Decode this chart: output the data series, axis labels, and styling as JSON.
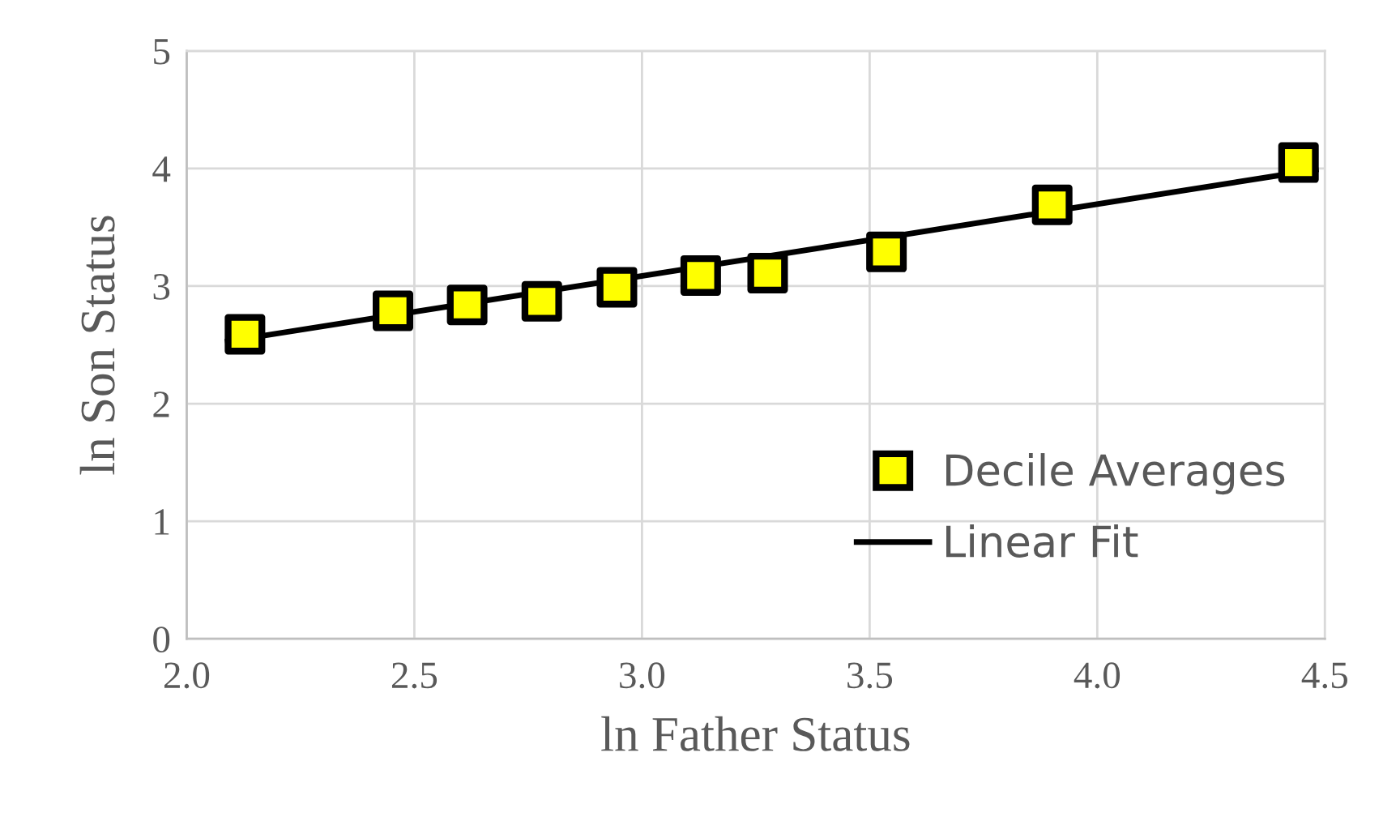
{
  "chart_data": {
    "type": "scatter",
    "xlabel": "ln Father Status",
    "ylabel": "ln Son Status",
    "series": [
      {
        "name": "Decile Averages",
        "color": "#ffff00",
        "marker": "square",
        "x": [
          2.128,
          2.453,
          2.616,
          2.78,
          2.945,
          3.129,
          3.276,
          3.537,
          3.901,
          4.442
        ],
        "values": [
          2.59,
          2.79,
          2.84,
          2.87,
          2.99,
          3.09,
          3.11,
          3.29,
          3.69,
          4.05
        ]
      },
      {
        "name": "Linear Fit",
        "type": "line",
        "color": "#000000",
        "x": [
          2.09,
          4.48
        ],
        "values": [
          2.53,
          3.99
        ]
      }
    ],
    "xlim": [
      2.0,
      4.5
    ],
    "xticks": [
      {
        "value": 2.0,
        "label": "2.0"
      },
      2.5,
      {
        "value": 3.0,
        "label": "3.0"
      },
      3.5,
      {
        "value": 4.0,
        "label": "4.0"
      },
      4.5
    ],
    "ylim": [
      0,
      5
    ],
    "yticks": [
      0,
      1,
      2,
      3,
      4,
      5
    ],
    "grid": true,
    "legend": "right"
  }
}
